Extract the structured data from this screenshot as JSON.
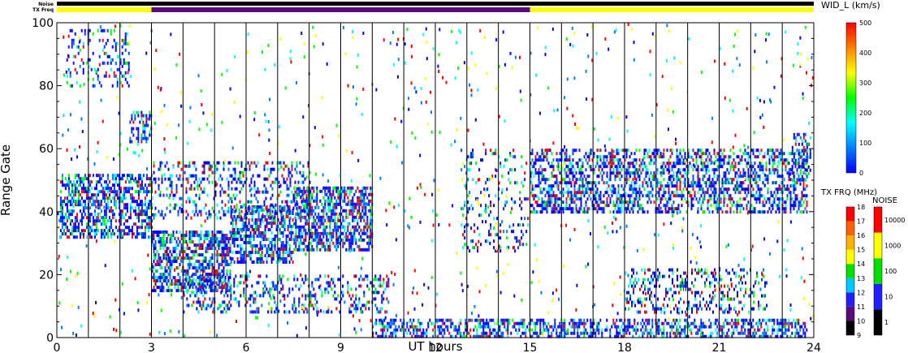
{
  "chart_data": {
    "type": "heatmap",
    "xlabel": "UT hours",
    "ylabel": "Range Gate",
    "xlim": [
      0,
      24
    ],
    "ylim": [
      0,
      100
    ],
    "x_ticks": [
      "0",
      "3",
      "6",
      "9",
      "12",
      "15",
      "18",
      "21",
      "24"
    ],
    "y_ticks": [
      "0",
      "20",
      "40",
      "60",
      "80",
      "100"
    ],
    "hour_lines": [
      1,
      2,
      3,
      4,
      5,
      6,
      7,
      8,
      9,
      10,
      11,
      12,
      13,
      14,
      15,
      16,
      17,
      18,
      19,
      20,
      21,
      22,
      23
    ],
    "top_bars": {
      "noise_label": "Noise",
      "txfreq_label": "TX Freq",
      "noise_color": "#000000",
      "txfreq_segments": [
        {
          "start": 0,
          "end": 3,
          "color": "#ffff00"
        },
        {
          "start": 3,
          "end": 15,
          "color": "#5a0a7a"
        },
        {
          "start": 15,
          "end": 24,
          "color": "#ffff00"
        }
      ]
    },
    "echo_regions": [
      {
        "x0": 0.1,
        "x1": 3.0,
        "y0": 32,
        "y1": 52,
        "density": 0.55
      },
      {
        "x0": 3.0,
        "x1": 5.5,
        "y0": 15,
        "y1": 34,
        "density": 0.6
      },
      {
        "x0": 5.5,
        "x1": 7.5,
        "y0": 24,
        "y1": 42,
        "density": 0.55
      },
      {
        "x0": 7.5,
        "x1": 10.0,
        "y0": 28,
        "y1": 48,
        "density": 0.6
      },
      {
        "x0": 3.0,
        "x1": 8.0,
        "y0": 38,
        "y1": 56,
        "density": 0.25
      },
      {
        "x0": 4.0,
        "x1": 10.5,
        "y0": 8,
        "y1": 20,
        "density": 0.25
      },
      {
        "x0": 10.0,
        "x1": 23.8,
        "y0": 0,
        "y1": 6,
        "density": 0.5
      },
      {
        "x0": 15.0,
        "x1": 23.8,
        "y0": 40,
        "y1": 60,
        "density": 0.45
      },
      {
        "x0": 12.8,
        "x1": 15.0,
        "y0": 28,
        "y1": 60,
        "density": 0.15
      },
      {
        "x0": 18.0,
        "x1": 22.5,
        "y0": 8,
        "y1": 22,
        "density": 0.25
      },
      {
        "x0": 0.3,
        "x1": 2.3,
        "y0": 80,
        "y1": 98,
        "density": 0.2
      },
      {
        "x0": 2.3,
        "x1": 3.0,
        "y0": 62,
        "y1": 72,
        "density": 0.4
      },
      {
        "x0": 23.3,
        "x1": 23.9,
        "y0": 50,
        "y1": 65,
        "density": 0.4
      }
    ],
    "colorbars": [
      {
        "title": "WID_L (km/s)",
        "type": "continuous",
        "ticks": [
          "0",
          "100",
          "200",
          "300",
          "400",
          "500"
        ],
        "colors": [
          "#0000ff",
          "#0080ff",
          "#00ffff",
          "#00ff00",
          "#ffff00",
          "#ff8000",
          "#ff0000"
        ]
      },
      {
        "title": "TX FRQ (MHz)",
        "type": "discrete",
        "ticks": [
          "9",
          "10",
          "11",
          "12",
          "13",
          "14",
          "15",
          "16",
          "17",
          "18"
        ],
        "colors": [
          "#000000",
          "#5a0a7a",
          "#2020ff",
          "#00c8ff",
          "#00e000",
          "#ffff00",
          "#ffb000",
          "#ff6000",
          "#ff0000"
        ]
      },
      {
        "title": "NOISE",
        "type": "discrete",
        "ticks": [
          "1",
          "10",
          "100",
          "1000",
          "10000"
        ],
        "colors": [
          "#000000",
          "#2020ff",
          "#00e000",
          "#ffff00",
          "#ff0000"
        ]
      }
    ]
  }
}
